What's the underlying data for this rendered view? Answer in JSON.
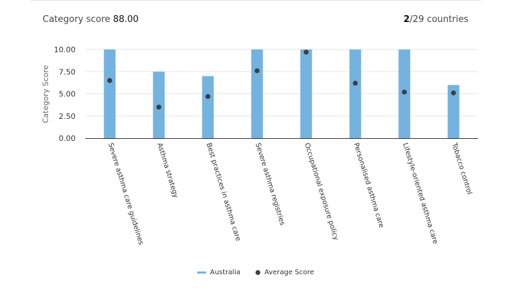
{
  "header": {
    "category_label": "Category score",
    "category_value": "88.00",
    "rank_value": "2",
    "rank_suffix": "/29 countries"
  },
  "colors": {
    "bar": "#74b3e0",
    "dot": "#3c3f47",
    "grid": "#e6e6e6",
    "axis": "#333333"
  },
  "chart_data": {
    "type": "bar",
    "ylabel": "Category Score",
    "xlabel": "",
    "ylim": [
      0,
      10
    ],
    "yticks": [
      "0.00",
      "2.50",
      "5.00",
      "7.50",
      "10.00"
    ],
    "grid": true,
    "legend_position": "bottom",
    "categories": [
      "Severe asthma care guidelines",
      "Asthma strategy",
      "Best practices in asthma care",
      "Severe asthma registries",
      "Occupational exposure policy",
      "Personalised asthma care",
      "Lifestyle-oriented asthma care",
      "Tobacco control"
    ],
    "series": [
      {
        "name": "Australia",
        "type": "bar",
        "values": [
          10,
          7.5,
          7,
          10,
          10,
          10,
          10,
          6
        ]
      },
      {
        "name": "Average Score",
        "type": "scatter",
        "values": [
          6.5,
          3.5,
          4.7,
          7.6,
          9.7,
          6.2,
          5.2,
          5.1
        ]
      }
    ]
  }
}
